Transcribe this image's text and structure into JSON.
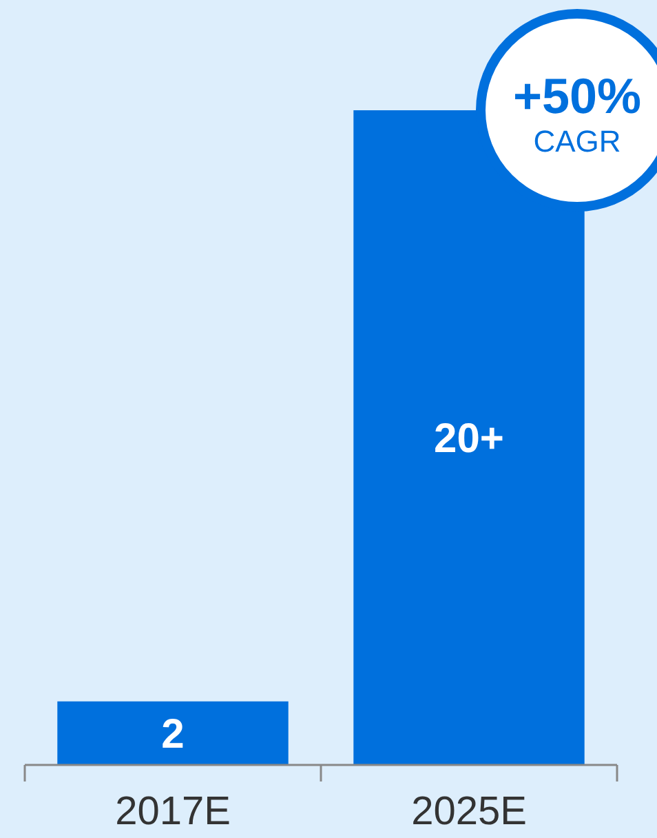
{
  "chart_data": {
    "type": "bar",
    "categories": [
      "2017E",
      "2025E"
    ],
    "values": [
      2,
      20.6
    ],
    "value_labels": [
      "2",
      "20+"
    ],
    "color": "#0070dd",
    "annotations": [
      "+50%",
      "CAGR"
    ]
  }
}
